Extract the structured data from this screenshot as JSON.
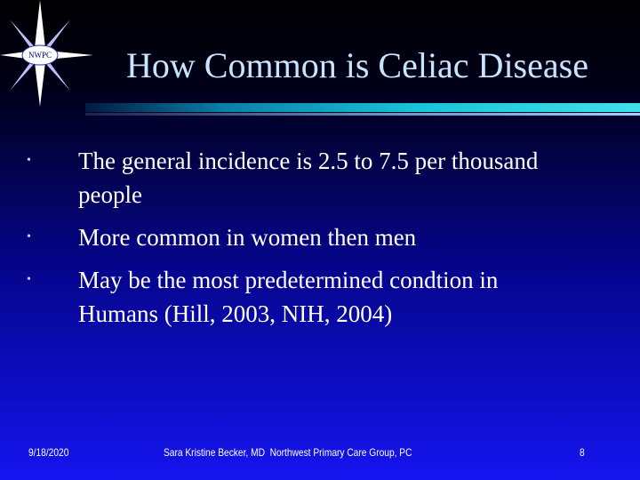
{
  "logo": {
    "text": "NWPC"
  },
  "title": "How Common is Celiac Disease",
  "bullets": [
    "The general incidence is 2.5 to 7.5 per thousand people",
    "More common in women then men",
    "May be the most predetermined condtion in Humans (Hill, 2003, NIH, 2004)"
  ],
  "footer": {
    "date": "9/18/2020",
    "presenter": "Sara Kristine Becker, MD  Northwest Primary Care Group, PC",
    "page": "8"
  }
}
